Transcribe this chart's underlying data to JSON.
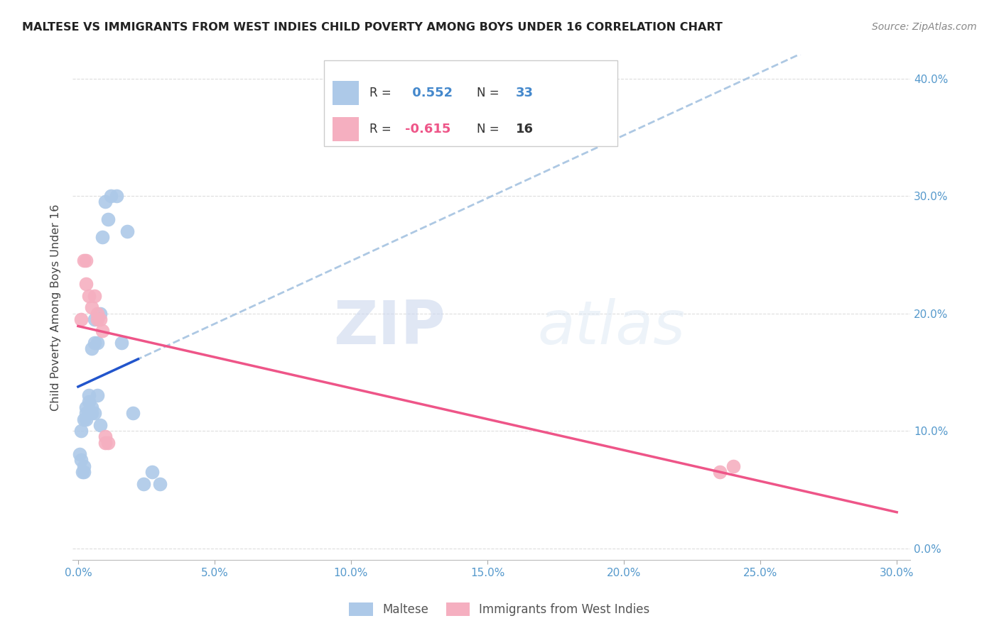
{
  "title": "MALTESE VS IMMIGRANTS FROM WEST INDIES CHILD POVERTY AMONG BOYS UNDER 16 CORRELATION CHART",
  "source": "Source: ZipAtlas.com",
  "ylabel": "Child Poverty Among Boys Under 16",
  "xlim": [
    -0.002,
    0.305
  ],
  "ylim": [
    -0.01,
    0.42
  ],
  "yticks": [
    0.0,
    0.1,
    0.2,
    0.3,
    0.4
  ],
  "xticks": [
    0.0,
    0.05,
    0.1,
    0.15,
    0.2,
    0.25,
    0.3
  ],
  "maltese_color": "#adc9e8",
  "west_indies_color": "#f5afc0",
  "trend_maltese_color": "#2255cc",
  "trend_west_indies_color": "#ee5588",
  "trend_dashed_color": "#99bbdd",
  "R_maltese": 0.552,
  "N_maltese": 33,
  "R_west_indies": -0.615,
  "N_west_indies": 16,
  "maltese_x": [
    0.0005,
    0.001,
    0.001,
    0.0015,
    0.002,
    0.002,
    0.002,
    0.003,
    0.003,
    0.003,
    0.004,
    0.004,
    0.005,
    0.005,
    0.005,
    0.006,
    0.006,
    0.006,
    0.007,
    0.007,
    0.008,
    0.008,
    0.009,
    0.01,
    0.011,
    0.012,
    0.014,
    0.016,
    0.018,
    0.02,
    0.024,
    0.027,
    0.03
  ],
  "maltese_y": [
    0.08,
    0.075,
    0.1,
    0.065,
    0.07,
    0.065,
    0.11,
    0.115,
    0.12,
    0.11,
    0.125,
    0.13,
    0.12,
    0.17,
    0.115,
    0.115,
    0.175,
    0.195,
    0.13,
    0.175,
    0.105,
    0.2,
    0.265,
    0.295,
    0.28,
    0.3,
    0.3,
    0.175,
    0.27,
    0.115,
    0.055,
    0.065,
    0.055
  ],
  "west_indies_x": [
    0.001,
    0.002,
    0.003,
    0.003,
    0.004,
    0.005,
    0.006,
    0.007,
    0.007,
    0.008,
    0.009,
    0.01,
    0.01,
    0.011,
    0.235,
    0.24
  ],
  "west_indies_y": [
    0.195,
    0.245,
    0.225,
    0.245,
    0.215,
    0.205,
    0.215,
    0.195,
    0.2,
    0.195,
    0.185,
    0.09,
    0.095,
    0.09,
    0.065,
    0.07
  ],
  "watermark_zip": "ZIP",
  "watermark_atlas": "atlas",
  "legend_label_maltese": "Maltese",
  "legend_label_west_indies": "Immigrants from West Indies"
}
